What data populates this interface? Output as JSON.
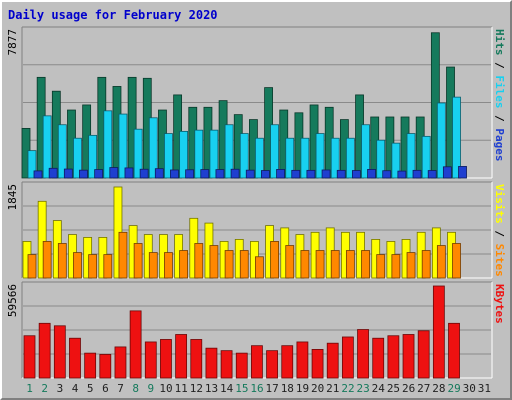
{
  "title": "Daily usage for February 2020",
  "colors": {
    "background": "#c0c0c0",
    "hits": "#157a5c",
    "files": "#18d0f0",
    "pages": "#1f3fd0",
    "visits": "#ffff00",
    "sites": "#ff8800",
    "kbytes": "#ee1111",
    "title": "#0000cc",
    "weekend_label": "#157a5c",
    "weekday_label": "#222222"
  },
  "chart_data": {
    "type": "bar",
    "title": "Daily usage for February 2020",
    "categories": [
      "1",
      "2",
      "3",
      "4",
      "5",
      "6",
      "7",
      "8",
      "9",
      "10",
      "11",
      "12",
      "13",
      "14",
      "15",
      "16",
      "17",
      "18",
      "19",
      "20",
      "21",
      "22",
      "23",
      "24",
      "25",
      "26",
      "27",
      "28",
      "29",
      "30",
      "31"
    ],
    "weekend_days": [
      "1",
      "2",
      "8",
      "9",
      "15",
      "16",
      "22",
      "23",
      "29"
    ],
    "panels": [
      {
        "name": "hits-files-pages",
        "ymax_label": "7877",
        "ymax": 7877,
        "ylabel_parts": [
          "Pages",
          "Files",
          "Hits"
        ],
        "series": [
          {
            "name": "Hits",
            "color": "#157a5c",
            "values": [
              2658,
              5394,
              4651,
              3642,
              3914,
              5394,
              4906,
              5394,
              5342,
              3642,
              4452,
              3789,
              3789,
              4146,
              3396,
              3130,
              4844,
              3642,
              3494,
              3914,
              3789,
              3130,
              4452,
              3269,
              3269,
              3269,
              3269,
              7783,
              5945,
              0,
              0
            ]
          },
          {
            "name": "Files",
            "color": "#18d0f0",
            "values": [
              1466,
              3331,
              2854,
              2131,
              2285,
              3600,
              3426,
              2615,
              3226,
              2381,
              2497,
              2564,
              2564,
              2854,
              2381,
              2131,
              2854,
              2131,
              2131,
              2381,
              2131,
              2131,
              2854,
              2025,
              1867,
              2381,
              2231,
              4021,
              4333,
              0,
              0
            ]
          },
          {
            "name": "Pages",
            "color": "#1f3fd0",
            "values": [
              380,
              520,
              480,
              420,
              450,
              560,
              540,
              470,
              500,
              430,
              440,
              450,
              450,
              470,
              420,
              400,
              460,
              410,
              410,
              430,
              410,
              400,
              460,
              390,
              370,
              410,
              400,
              600,
              620,
              0,
              0
            ]
          }
        ]
      },
      {
        "name": "visits-sites",
        "ymax_label": "1845",
        "ymax": 1845,
        "ylabel_parts": [
          "Sites",
          "Visits"
        ],
        "series": [
          {
            "name": "Visits",
            "color": "#ffff00",
            "values": [
              733,
              1538,
              1152,
              871,
              814,
              814,
              1825,
              1051,
              871,
              871,
              871,
              1197,
              1101,
              733,
              774,
              733,
              1051,
              1005,
              871,
              916,
              1005,
              916,
              916,
              774,
              733,
              774,
              916,
              1005,
              916,
              0,
              0
            ]
          },
          {
            "name": "Sites",
            "color": "#ff8800",
            "values": [
              469,
              733,
              692,
              510,
              469,
              469,
              916,
              692,
              510,
              510,
              551,
              692,
              651,
              551,
              551,
              426,
              733,
              651,
              551,
              551,
              551,
              551,
              551,
              469,
              469,
              510,
              551,
              651,
              692,
              0,
              0
            ]
          }
        ]
      },
      {
        "name": "kbytes",
        "ymax_label": "59566",
        "ymax": 59566,
        "ylabel_parts": [
          "KBytes"
        ],
        "series": [
          {
            "name": "KBytes",
            "color": "#ee1111",
            "values": [
              27364,
              35411,
              33802,
              25755,
              16098,
              15293,
              20121,
              43457,
              23340,
              24950,
              28169,
              24950,
              19316,
              17707,
              16098,
              20926,
              17707,
              20926,
              23340,
              18511,
              22535,
              26560,
              31388,
              25755,
              27364,
              28169,
              30583,
              59566,
              35411,
              0,
              0
            ]
          }
        ]
      }
    ]
  }
}
